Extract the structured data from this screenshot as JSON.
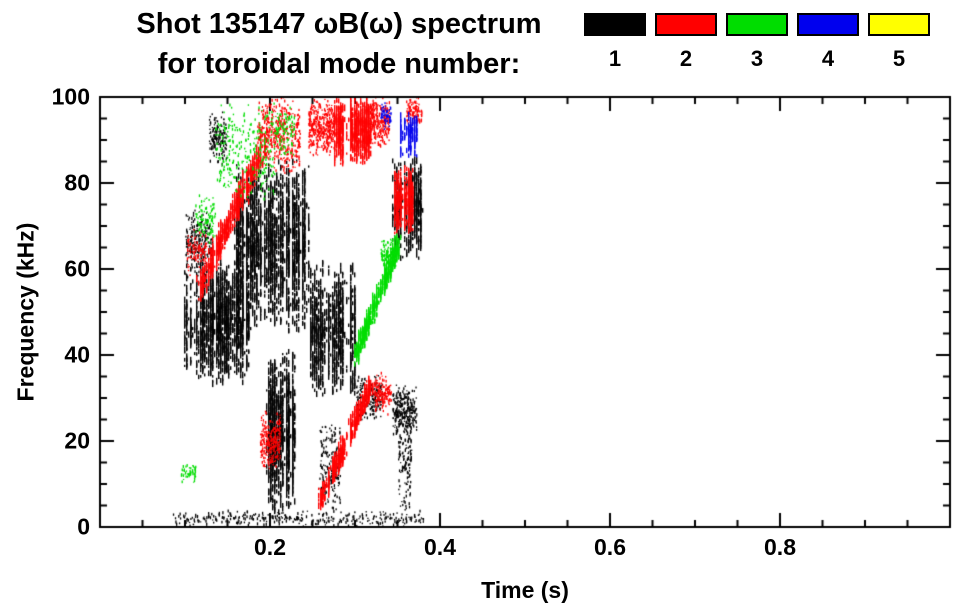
{
  "header": {
    "title_line1": "Shot 135147 ωB(ω) spectrum",
    "title_line2": "for toroidal mode number:"
  },
  "chart_data": {
    "type": "scatter",
    "title": "Shot 135147 ωB(ω) spectrum for toroidal mode number",
    "xlabel": "Time (s)",
    "ylabel": "Frequency (kHz)",
    "xlim": [
      0.0,
      1.0
    ],
    "ylim": [
      0,
      100
    ],
    "grid": false,
    "legend_position": "top-right",
    "xticks": {
      "values": [
        0.2,
        0.4,
        0.6,
        0.8
      ],
      "labels": [
        "0.2",
        "0.4",
        "0.6",
        "0.8"
      ],
      "minor_step": 0.05
    },
    "yticks": {
      "values": [
        0,
        20,
        40,
        60,
        80,
        100
      ],
      "labels": [
        "0",
        "20",
        "40",
        "60",
        "80",
        "100"
      ],
      "minor_step": 5
    },
    "modes": [
      {
        "mode": 1,
        "label": "1",
        "color": "#000000"
      },
      {
        "mode": 2,
        "label": "2",
        "color": "#ff0000"
      },
      {
        "mode": 3,
        "label": "3",
        "color": "#00dd00"
      },
      {
        "mode": 4,
        "label": "4",
        "color": "#0000ee"
      },
      {
        "mode": 5,
        "label": "5",
        "color": "#ffff00"
      }
    ],
    "clusters": [
      {
        "mode": 1,
        "kind": "box",
        "t": [
          0.098,
          0.175
        ],
        "f": [
          33,
          62
        ],
        "n": 3200,
        "style": "dense"
      },
      {
        "mode": 1,
        "kind": "box",
        "t": [
          0.1,
          0.132
        ],
        "f": [
          58,
          74
        ],
        "n": 260,
        "style": "speckle"
      },
      {
        "mode": 1,
        "kind": "box",
        "t": [
          0.128,
          0.148
        ],
        "f": [
          84,
          97
        ],
        "n": 150,
        "style": "speckle"
      },
      {
        "mode": 1,
        "kind": "box",
        "t": [
          0.158,
          0.245
        ],
        "f": [
          45,
          86
        ],
        "n": 4200,
        "style": "dense"
      },
      {
        "mode": 1,
        "kind": "box",
        "t": [
          0.196,
          0.228
        ],
        "f": [
          3,
          42
        ],
        "n": 2000,
        "style": "dense"
      },
      {
        "mode": 1,
        "kind": "box",
        "t": [
          0.246,
          0.3
        ],
        "f": [
          30,
          62
        ],
        "n": 2000,
        "style": "dense"
      },
      {
        "mode": 1,
        "kind": "box",
        "t": [
          0.3,
          0.332
        ],
        "f": [
          24,
          36
        ],
        "n": 170,
        "style": "speckle"
      },
      {
        "mode": 1,
        "kind": "box",
        "t": [
          0.344,
          0.378
        ],
        "f": [
          62,
          86
        ],
        "n": 900,
        "style": "dense"
      },
      {
        "mode": 1,
        "kind": "box",
        "t": [
          0.344,
          0.372
        ],
        "f": [
          21,
          33
        ],
        "n": 280,
        "style": "speckle"
      },
      {
        "mode": 1,
        "kind": "box",
        "t": [
          0.085,
          0.38
        ],
        "f": [
          0,
          4
        ],
        "n": 330,
        "style": "speckle"
      },
      {
        "mode": 1,
        "kind": "box",
        "t": [
          0.258,
          0.282
        ],
        "f": [
          2,
          26
        ],
        "n": 170,
        "style": "speckle"
      },
      {
        "mode": 1,
        "kind": "box",
        "t": [
          0.35,
          0.366
        ],
        "f": [
          2,
          30
        ],
        "n": 140,
        "style": "speckle"
      },
      {
        "mode": 2,
        "kind": "diag",
        "t": [
          0.115,
          0.195
        ],
        "f": [
          55,
          90
        ],
        "thick": 8,
        "n": 1400,
        "style": "dense"
      },
      {
        "mode": 2,
        "kind": "box",
        "t": [
          0.185,
          0.235
        ],
        "f": [
          82,
          100
        ],
        "n": 450,
        "style": "speckle"
      },
      {
        "mode": 2,
        "kind": "box",
        "t": [
          0.245,
          0.275
        ],
        "f": [
          86,
          100
        ],
        "n": 380,
        "style": "speckle"
      },
      {
        "mode": 2,
        "kind": "box",
        "t": [
          0.275,
          0.318
        ],
        "f": [
          84,
          100
        ],
        "n": 1600,
        "style": "dense"
      },
      {
        "mode": 2,
        "kind": "box",
        "t": [
          0.318,
          0.34
        ],
        "f": [
          88,
          100
        ],
        "n": 230,
        "style": "speckle"
      },
      {
        "mode": 2,
        "kind": "box",
        "t": [
          0.346,
          0.368
        ],
        "f": [
          68,
          84
        ],
        "n": 800,
        "style": "dense"
      },
      {
        "mode": 2,
        "kind": "diag",
        "t": [
          0.258,
          0.318
        ],
        "f": [
          6,
          33
        ],
        "thick": 6,
        "n": 1300,
        "style": "dense"
      },
      {
        "mode": 2,
        "kind": "box",
        "t": [
          0.188,
          0.212
        ],
        "f": [
          13,
          27
        ],
        "n": 260,
        "style": "speckle"
      },
      {
        "mode": 2,
        "kind": "box",
        "t": [
          0.322,
          0.342
        ],
        "f": [
          26,
          36
        ],
        "n": 150,
        "style": "speckle"
      },
      {
        "mode": 2,
        "kind": "box",
        "t": [
          0.36,
          0.378
        ],
        "f": [
          93,
          100
        ],
        "n": 100,
        "style": "speckle"
      },
      {
        "mode": 2,
        "kind": "box",
        "t": [
          0.102,
          0.125
        ],
        "f": [
          58,
          70
        ],
        "n": 100,
        "style": "speckle"
      },
      {
        "mode": 3,
        "kind": "diag",
        "t": [
          0.3,
          0.35
        ],
        "f": [
          40,
          66
        ],
        "thick": 6,
        "n": 1200,
        "style": "dense"
      },
      {
        "mode": 3,
        "kind": "box",
        "t": [
          0.135,
          0.205
        ],
        "f": [
          76,
          99
        ],
        "n": 300,
        "style": "speckle"
      },
      {
        "mode": 3,
        "kind": "box",
        "t": [
          0.112,
          0.135
        ],
        "f": [
          66,
          78
        ],
        "n": 100,
        "style": "speckle"
      },
      {
        "mode": 3,
        "kind": "box",
        "t": [
          0.205,
          0.228
        ],
        "f": [
          86,
          98
        ],
        "n": 100,
        "style": "speckle"
      },
      {
        "mode": 3,
        "kind": "box",
        "t": [
          0.33,
          0.348
        ],
        "f": [
          58,
          68
        ],
        "n": 120,
        "style": "speckle"
      },
      {
        "mode": 3,
        "kind": "box",
        "t": [
          0.095,
          0.112
        ],
        "f": [
          10,
          15
        ],
        "n": 50,
        "style": "speckle"
      },
      {
        "mode": 4,
        "kind": "box",
        "t": [
          0.352,
          0.372
        ],
        "f": [
          86,
          97
        ],
        "n": 260,
        "style": "dense"
      },
      {
        "mode": 4,
        "kind": "box",
        "t": [
          0.33,
          0.342
        ],
        "f": [
          92,
          99
        ],
        "n": 60,
        "style": "speckle"
      }
    ]
  }
}
